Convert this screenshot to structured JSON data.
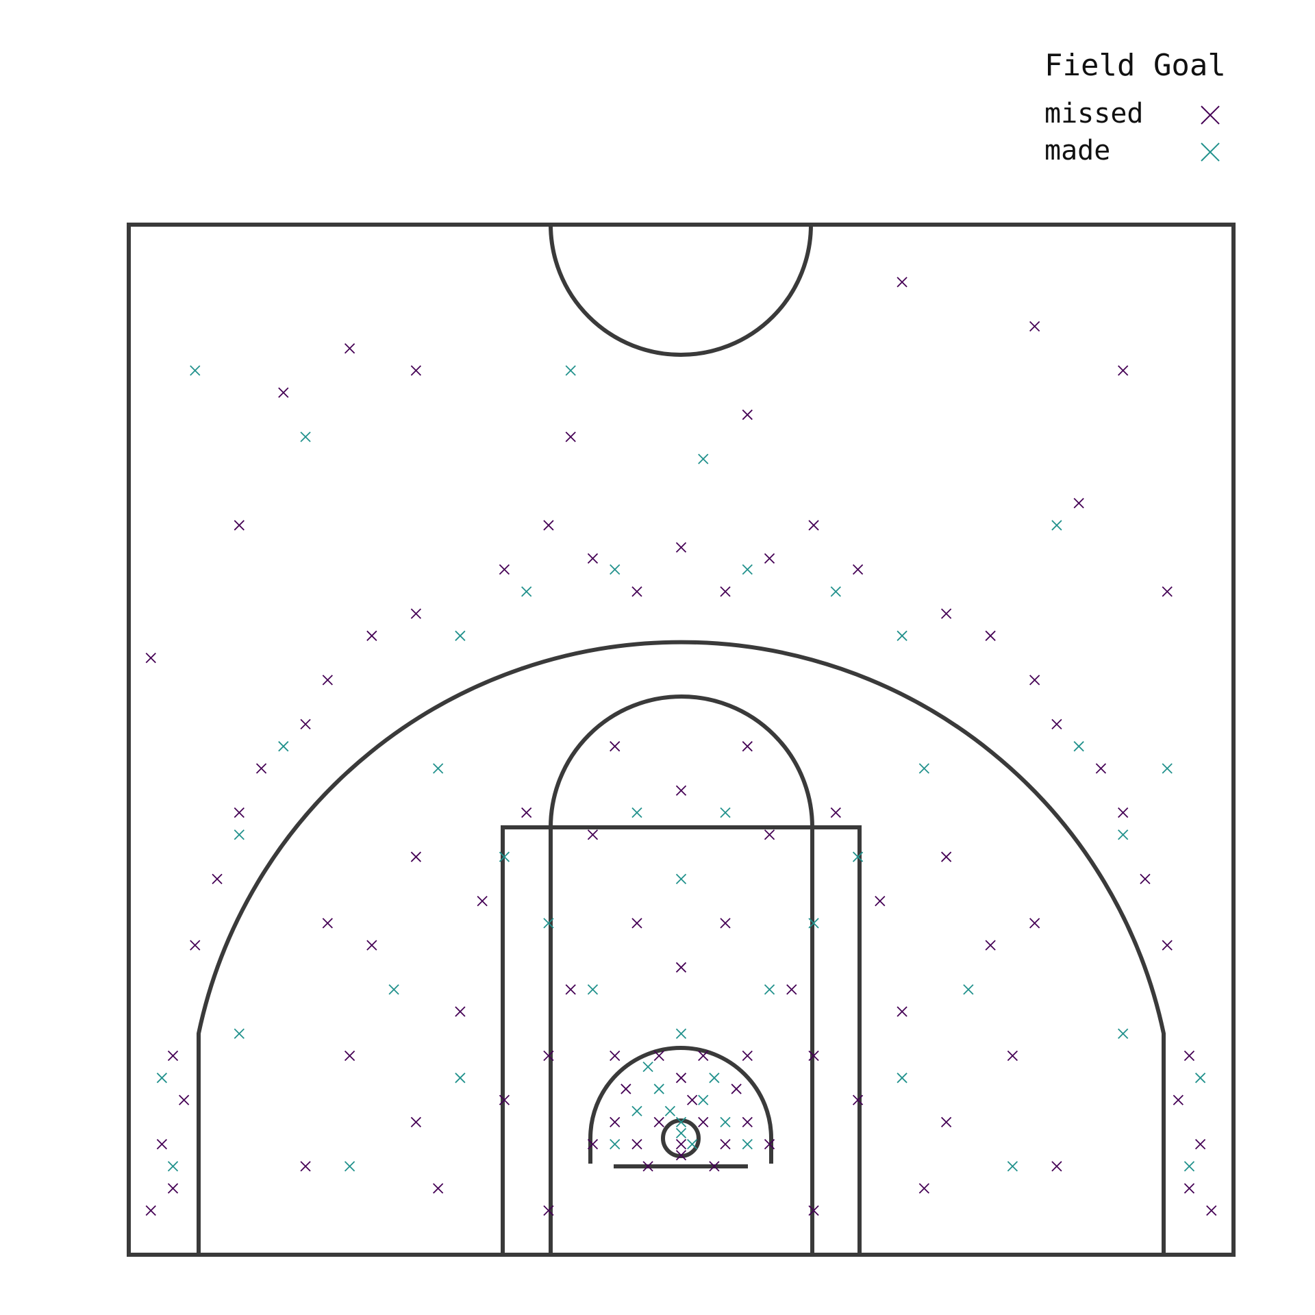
{
  "chart_data": {
    "type": "scatter",
    "legend_title": "Field Goal",
    "legend": "upper right",
    "xlim": [
      -25,
      25
    ],
    "ylim": [
      0,
      46.6
    ],
    "series": [
      {
        "name": "missed",
        "color": "#440154",
        "x": [
          0,
          1,
          -1,
          0.5,
          -2,
          2,
          1.5,
          -1.5,
          0,
          -3,
          3,
          2.5,
          -2.5,
          0,
          1,
          -1,
          4,
          -4,
          3,
          -3,
          -5,
          5,
          0,
          -2,
          2,
          -6,
          6,
          -8,
          8,
          -10,
          10,
          -12,
          12,
          -14,
          14,
          -9,
          9,
          -4,
          4,
          0,
          -7,
          7,
          -12,
          12,
          -15,
          15,
          -17,
          17,
          -11,
          11,
          -6,
          6,
          -16,
          16,
          -3,
          3,
          -23,
          -23.5,
          -22.5,
          -24,
          23,
          23.5,
          22.5,
          24,
          -23,
          23,
          -19,
          -17,
          -20,
          -21,
          -16,
          19,
          17,
          20,
          21,
          16,
          -22,
          22,
          -12,
          -8,
          -4,
          0,
          4,
          8,
          12,
          -14,
          14,
          -6,
          6,
          2,
          -2,
          -18,
          -15,
          -12,
          10,
          16,
          20,
          -5,
          3,
          -20,
          18,
          22,
          -24
        ],
        "values": [
          5,
          6,
          6,
          7,
          5,
          5,
          4,
          4,
          8,
          6,
          6,
          7.5,
          7.5,
          4.5,
          9,
          9,
          5,
          5,
          9,
          9,
          12,
          12,
          13,
          15,
          15,
          9,
          9,
          7,
          7,
          11,
          11,
          6,
          6,
          14,
          14,
          16,
          16,
          19,
          19,
          21,
          20,
          20,
          18,
          18,
          9,
          9,
          4,
          4,
          3,
          3,
          2,
          2,
          15,
          15,
          23,
          23,
          3,
          5,
          7,
          2,
          3,
          5,
          7,
          2,
          9,
          9,
          22,
          24,
          20,
          17,
          26,
          22,
          24,
          20,
          17,
          26,
          14,
          14,
          29,
          31,
          31.5,
          32,
          31.5,
          31,
          29,
          28,
          28,
          33,
          33,
          30,
          30,
          39,
          41,
          40,
          44,
          42,
          40,
          37,
          38,
          33,
          34,
          30,
          27
        ]
      },
      {
        "name": "made",
        "color": "#21918c",
        "x": [
          0,
          0.5,
          -0.5,
          1,
          -1,
          2,
          -2,
          0,
          1.5,
          -1.5,
          3,
          -3,
          0,
          -4,
          4,
          -6,
          6,
          -10,
          10,
          -13,
          13,
          -8,
          8,
          0,
          -2,
          2,
          -15,
          15,
          -23,
          23,
          -23.5,
          23.5,
          -20,
          20,
          -18,
          18,
          -10,
          10,
          -3,
          3,
          -7,
          7,
          -20,
          20,
          -11,
          11,
          -5,
          1,
          -17,
          -22,
          17,
          22
        ],
        "values": [
          5.5,
          5,
          6.5,
          7,
          7.5,
          6,
          6.5,
          6,
          8,
          8.5,
          5,
          5,
          10,
          12,
          12,
          15,
          15,
          8,
          8,
          12,
          12,
          18,
          18,
          17,
          20,
          20,
          4,
          4,
          4,
          4,
          8,
          8,
          19,
          19,
          23,
          23,
          28,
          28,
          31,
          31,
          30,
          30,
          10,
          10,
          22,
          22,
          40,
          36,
          37,
          40,
          33,
          22
        ]
      }
    ]
  }
}
